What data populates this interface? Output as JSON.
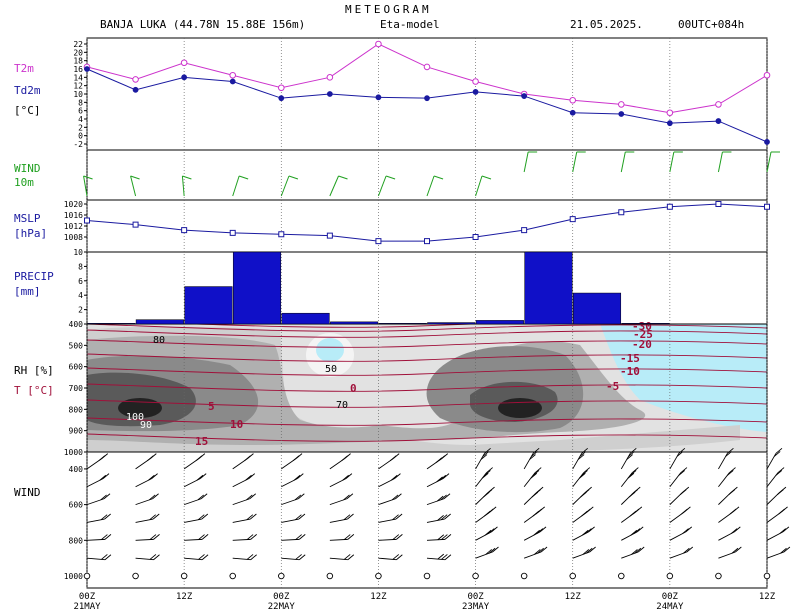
{
  "header": {
    "title": "METEOGRAM",
    "station": "BANJA LUKA (44.78N 15.88E  156m)",
    "model": "Eta-model",
    "date": "21.05.2025.",
    "run": "00UTC+084h"
  },
  "panels": {
    "temp": {
      "label1": "T2m",
      "label2": "Td2m",
      "unit": "[°C]"
    },
    "wind10": {
      "label1": "WIND",
      "label2": "10m"
    },
    "mslp": {
      "label1": "MSLP",
      "unit": "[hPa]"
    },
    "precip": {
      "label1": "PRECIP",
      "unit": "[mm]"
    },
    "rh": {
      "label1": "RH [%]",
      "label2": "T [°C]"
    },
    "wind": {
      "label1": "WIND"
    }
  },
  "colors": {
    "t2m": "#cc33cc",
    "td2m": "#1a1aa0",
    "mslp": "#1a1aa0",
    "precip": "#1010c8",
    "wind10": "#20a020",
    "isotherm": "#a0103a",
    "cold": "#b8ecf8"
  },
  "chart_data": {
    "type": "line",
    "x_hours": [
      0,
      6,
      12,
      18,
      24,
      30,
      36,
      42,
      48,
      54,
      60,
      66,
      72,
      78,
      84
    ],
    "x_ticks": [
      {
        "h": 0,
        "label": "00Z",
        "date": "21MAY"
      },
      {
        "h": 12,
        "label": "12Z",
        "date": ""
      },
      {
        "h": 24,
        "label": "00Z",
        "date": "22MAY"
      },
      {
        "h": 36,
        "label": "12Z",
        "date": ""
      },
      {
        "h": 48,
        "label": "00Z",
        "date": "23MAY"
      },
      {
        "h": 60,
        "label": "12Z",
        "date": ""
      },
      {
        "h": 72,
        "label": "00Z",
        "date": "24MAY"
      },
      {
        "h": 84,
        "label": "12Z",
        "date": ""
      }
    ],
    "temperature": {
      "ylim": [
        -2,
        22
      ],
      "yticks": [
        "22",
        "20",
        "18",
        "16",
        "14",
        "12",
        "10",
        "8",
        "6",
        "4",
        "2",
        "0",
        "-2"
      ],
      "series": [
        {
          "name": "T2m",
          "values": [
            16.5,
            13.5,
            17.5,
            14.5,
            11.5,
            14,
            22,
            16.5,
            13,
            10,
            8.5,
            7.5,
            5.5,
            7.5,
            14.5
          ]
        },
        {
          "name": "Td2m",
          "values": [
            16,
            11,
            14,
            13,
            9,
            10,
            9.2,
            9,
            10.5,
            9.5,
            5.5,
            5.2,
            3,
            3.5,
            -1.5
          ]
        }
      ]
    },
    "mslp": {
      "ylim": [
        1004,
        1020
      ],
      "yticks": [
        "1020",
        "1016",
        "1012",
        "1008"
      ],
      "values": [
        1014,
        1012.5,
        1010.5,
        1009.5,
        1009,
        1008.5,
        1006.5,
        1006.5,
        1008,
        1010.5,
        1014.5,
        1017,
        1019,
        1020,
        1019
      ]
    },
    "precip": {
      "ylim": [
        0,
        10
      ],
      "yticks": [
        "10",
        "8",
        "6",
        "4",
        "2"
      ],
      "values": [
        0.1,
        0.6,
        5.2,
        10,
        1.5,
        0.3,
        0.1,
        0.2,
        0.5,
        10,
        4.3,
        0.1,
        0,
        0
      ]
    },
    "rh_temp": {
      "pressure_ticks": [
        "400",
        "500",
        "600",
        "700",
        "800",
        "900",
        "1000"
      ],
      "isotherm_labels": [
        "-30",
        "-25",
        "-20",
        "-15",
        "-10",
        "-5",
        "0",
        "5",
        "10",
        "15"
      ],
      "rh_labels": [
        "50",
        "70",
        "80",
        "90",
        "100"
      ]
    },
    "wind_profile": {
      "pressure_ticks": [
        "400",
        "600",
        "800",
        "1000"
      ]
    }
  }
}
